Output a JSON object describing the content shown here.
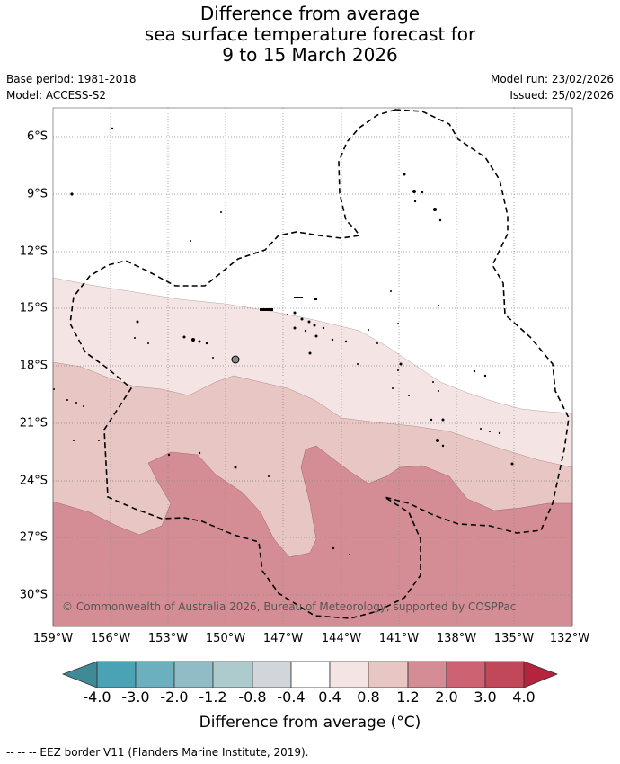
{
  "title": {
    "line1": "Difference from average",
    "line2": "sea surface temperature forecast for",
    "line3": "9 to 15 March 2026"
  },
  "meta": {
    "base_period": "Base period: 1981-2018",
    "model": "Model: ACCESS-S2",
    "model_run": "Model run: 23/02/2026",
    "issued": "Issued: 25/02/2026"
  },
  "axes": {
    "lat_labels": [
      "6°S",
      "9°S",
      "12°S",
      "15°S",
      "18°S",
      "21°S",
      "24°S",
      "27°S",
      "30°S"
    ],
    "lon_labels": [
      "159°W",
      "156°W",
      "153°W",
      "150°W",
      "147°W",
      "144°W",
      "141°W",
      "138°W",
      "135°W",
      "132°W"
    ]
  },
  "colorbar": {
    "title": "Difference from average (°C)",
    "ticks": [
      "-4.0",
      "-3.0",
      "-2.0",
      "-1.2",
      "-0.8",
      "-0.4",
      "0.4",
      "0.8",
      "1.2",
      "2.0",
      "3.0",
      "4.0"
    ],
    "colors": [
      "#3f8a96",
      "#4aa3b5",
      "#6cb0c0",
      "#8fbcc7",
      "#adcacd",
      "#d1d6da",
      "#ffffff",
      "#f4e5e4",
      "#e8c6c3",
      "#d58d95",
      "#cd6372",
      "#c04858",
      "#b5233d"
    ]
  },
  "copyright": "© Commonwealth of Australia 2026, Bureau of Meteorology, supported by COSPPac",
  "footer": "-- -- -- EEZ border V11 (Flanders Marine Institute, 2019).",
  "chart_data": {
    "type": "map",
    "variable": "SST anomaly (°C)",
    "lon_range": [
      -159,
      -132
    ],
    "lat_range": [
      -32,
      -5
    ],
    "bands": [
      {
        "range": "0.4 to 0.8",
        "color": "#f4e5e4",
        "approx_extent": "14°S to 21°S, north of 0.8 contour"
      },
      {
        "range": "0.8 to 1.2",
        "color": "#e8c6c3",
        "approx_extent": "18°S to 27°S"
      },
      {
        "range": "1.2 to 2.0",
        "color": "#d58d95",
        "approx_extent": "south of ~24°S"
      }
    ]
  }
}
